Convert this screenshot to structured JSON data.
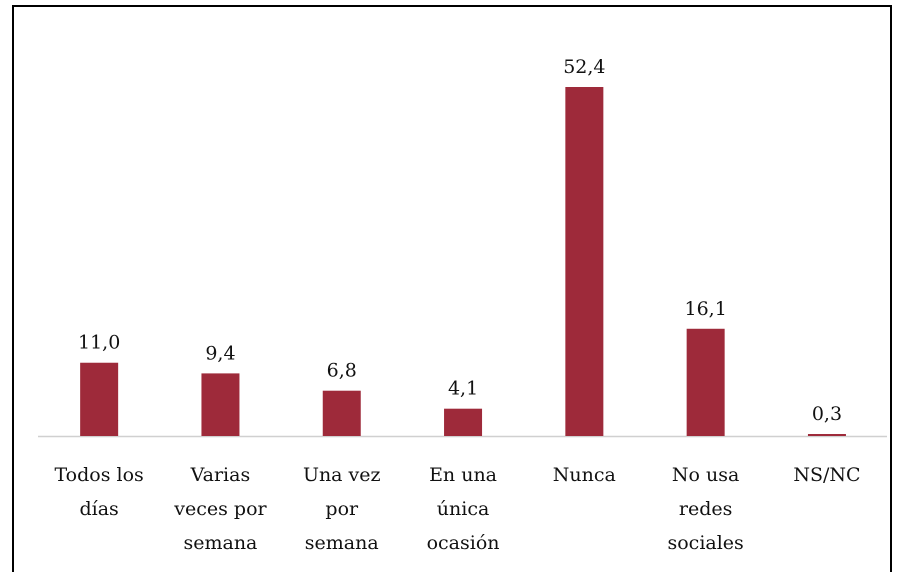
{
  "chart_data": {
    "type": "bar",
    "categories": [
      "Todos los días",
      "Varias veces por semana",
      "Una vez por semana",
      "En una única ocasión",
      "Nunca",
      "No usa redes sociales",
      "NS/NC"
    ],
    "values": [
      11.0,
      9.4,
      6.8,
      4.1,
      52.4,
      16.1,
      0.3
    ],
    "value_labels": [
      "11,0",
      "9,4",
      "6,8",
      "4,1",
      "52,4",
      "16,1",
      "0,3"
    ],
    "color": "#9e2a3a"
  }
}
